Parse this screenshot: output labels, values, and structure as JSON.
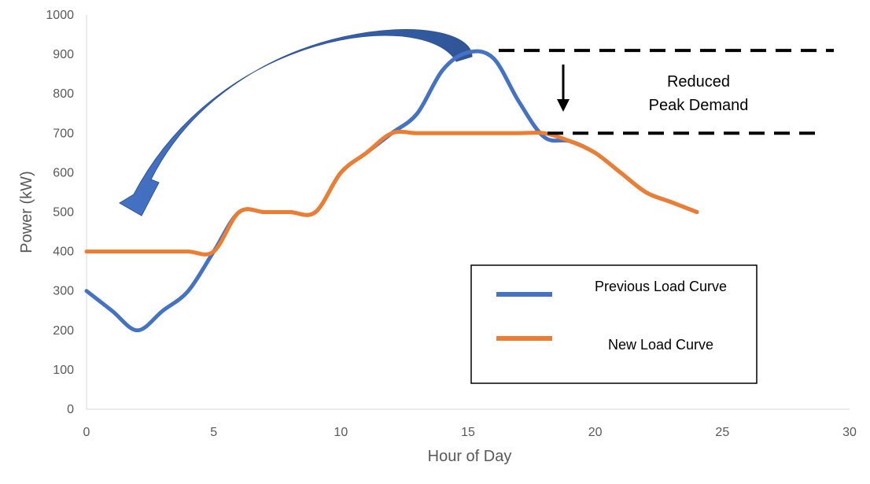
{
  "chart_data": {
    "type": "line",
    "title": "",
    "xlabel": "Hour of Day",
    "ylabel": "Power (kW)",
    "xlim": [
      0,
      30
    ],
    "ylim": [
      0,
      1000
    ],
    "xticks": [
      0,
      5,
      10,
      15,
      20,
      25,
      30
    ],
    "yticks": [
      0,
      100,
      200,
      300,
      400,
      500,
      600,
      700,
      800,
      900,
      1000
    ],
    "grid": false,
    "legend": {
      "placement": "lower-right, boxed",
      "entries": [
        "Previous Load Curve",
        "New Load Curve"
      ]
    },
    "series": [
      {
        "name": "Previous Load Curve",
        "color": "#4472C4",
        "x": [
          0,
          1,
          2,
          3,
          4,
          5,
          6,
          7,
          8,
          9,
          10,
          11,
          12,
          13,
          14,
          15,
          16,
          17,
          18,
          19,
          20,
          21,
          22,
          23,
          24
        ],
        "y": [
          300,
          250,
          200,
          250,
          300,
          400,
          500,
          500,
          500,
          500,
          600,
          650,
          700,
          750,
          860,
          905,
          890,
          780,
          690,
          680,
          650,
          600,
          550,
          525,
          500
        ]
      },
      {
        "name": "New Load Curve",
        "color": "#ED7D31",
        "x": [
          0,
          1,
          2,
          3,
          4,
          5,
          6,
          7,
          8,
          9,
          10,
          11,
          12,
          13,
          14,
          15,
          16,
          17,
          18,
          19,
          20,
          21,
          22,
          23,
          24
        ],
        "y": [
          400,
          400,
          400,
          400,
          400,
          400,
          500,
          500,
          500,
          500,
          600,
          650,
          700,
          700,
          700,
          700,
          700,
          700,
          700,
          680,
          650,
          600,
          550,
          525,
          500
        ]
      }
    ],
    "annotations": {
      "peak_reduction_text": [
        "Reduced",
        "Peak Demand"
      ],
      "upper_dashed_level": 910,
      "lower_dashed_level": 700,
      "shift_arrow": "curved blue arrow from the afternoon peak back to early morning hours"
    }
  }
}
